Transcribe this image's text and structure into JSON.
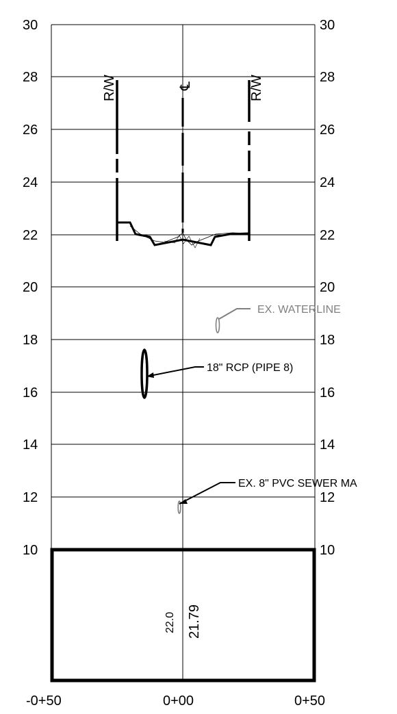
{
  "diagram": {
    "elevation_labels": [
      "30",
      "28",
      "26",
      "24",
      "22",
      "20",
      "18",
      "16",
      "14",
      "12",
      "10"
    ],
    "station_labels": [
      "-0+50",
      "0+00",
      "0+50"
    ],
    "row_labels": {
      "left": "R/W",
      "right": "R/W",
      "center": "℄"
    },
    "annotations": {
      "waterline": "EX. WATERLINE",
      "rcp": "18\" RCP (PIPE 8)",
      "sewer": "EX. 8\" PVC SEWER MA"
    },
    "box_labels": {
      "small": "22.0",
      "large": "21.79"
    },
    "colors": {
      "line": "#000000",
      "existing": "#808080"
    }
  }
}
